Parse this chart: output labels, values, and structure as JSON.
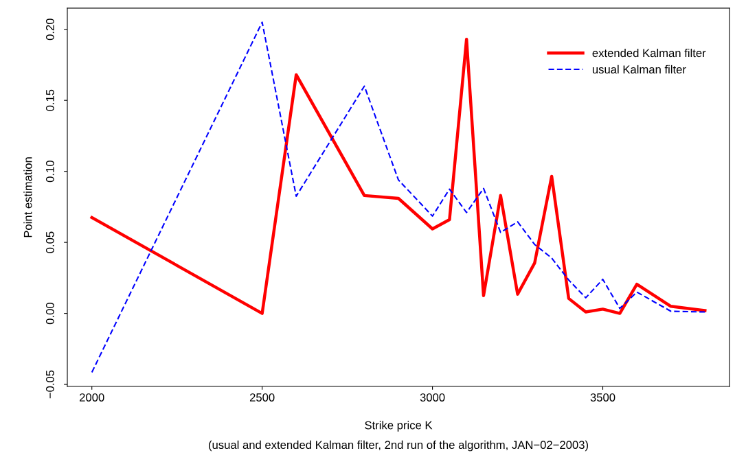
{
  "chart_data": {
    "type": "line",
    "xlabel": "Strike price K",
    "ylabel": "Point estimation",
    "annotations": [
      "(usual and extended Kalman filter, 2nd run of the algorithm, JAN−02−2003)"
    ],
    "x": [
      2000,
      2500,
      2600,
      2800,
      2900,
      3000,
      3050,
      3100,
      3150,
      3200,
      3250,
      3300,
      3350,
      3400,
      3450,
      3500,
      3550,
      3600,
      3700,
      3800
    ],
    "series": [
      {
        "name": "extended Kalman filter",
        "color": "#ff0000",
        "line_style": "solid",
        "values": [
          0.0675,
          0,
          0.168,
          0.083,
          0.081,
          0.0595,
          0.066,
          0.193,
          0.0125,
          0.083,
          0.0135,
          0.0355,
          0.0965,
          0.0105,
          0.001,
          0.003,
          0,
          0.0205,
          0.005,
          0.002
        ]
      },
      {
        "name": "usual Kalman filter",
        "color": "#0000ff",
        "line_style": "dashed",
        "values": [
          -0.0415,
          0.205,
          0.0825,
          0.16,
          0.094,
          0.0685,
          0.0875,
          0.071,
          0.088,
          0.057,
          0.0645,
          0.0485,
          0.039,
          0.0235,
          0.011,
          0.024,
          0.0035,
          0.015,
          0.0015,
          0.001
        ]
      }
    ],
    "xlim": [
      1928,
      3872
    ],
    "ylim": [
      -0.0514,
      0.2149
    ],
    "xticks": [
      2000,
      2500,
      3000,
      3500
    ],
    "yticks": [
      {
        "value": -0.05,
        "label": "−0.05"
      },
      {
        "value": 0,
        "label": "0.00"
      },
      {
        "value": 0.05,
        "label": "0.05"
      },
      {
        "value": 0.1,
        "label": "0.10"
      },
      {
        "value": 0.15,
        "label": "0.15"
      },
      {
        "value": 0.2,
        "label": "0.20"
      }
    ],
    "grid": false,
    "legend": "top right"
  }
}
